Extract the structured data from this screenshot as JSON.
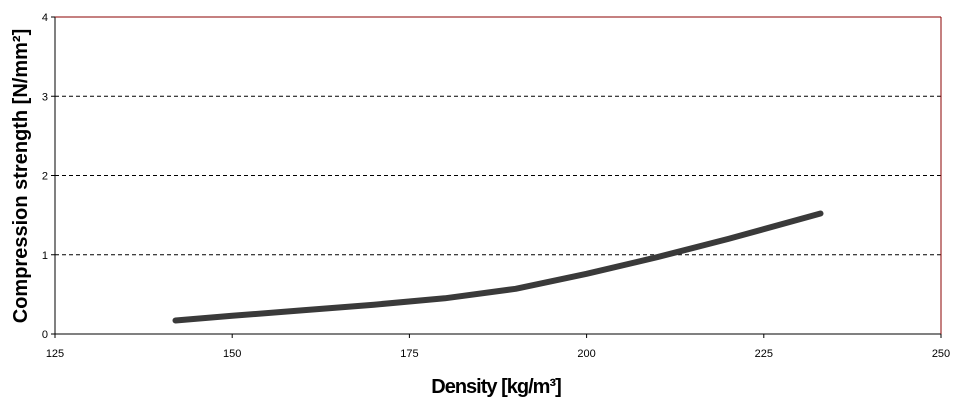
{
  "chart_data": {
    "type": "line",
    "title": "",
    "xlabel": "Density [kg/m³]",
    "ylabel": "Compression strength [N/mm²]",
    "xlim": [
      125,
      250
    ],
    "ylim": [
      0,
      4
    ],
    "x_ticks": [
      "125",
      "150",
      "175",
      "200",
      "225",
      "250"
    ],
    "y_ticks": [
      "0",
      "1",
      "2",
      "3",
      "4"
    ],
    "grid": "horizontal dashed",
    "legend": "none",
    "colors": {
      "line": "#3a3a3a",
      "frame_left": "#000000",
      "frame_right": "#8b0000",
      "grid": "#000000"
    },
    "series": [
      {
        "x": [
          142,
          150,
          160,
          170,
          180,
          190,
          200,
          210,
          220,
          233
        ],
        "values": [
          0.17,
          0.23,
          0.3,
          0.37,
          0.45,
          0.57,
          0.76,
          0.97,
          1.2,
          1.52
        ]
      }
    ]
  }
}
